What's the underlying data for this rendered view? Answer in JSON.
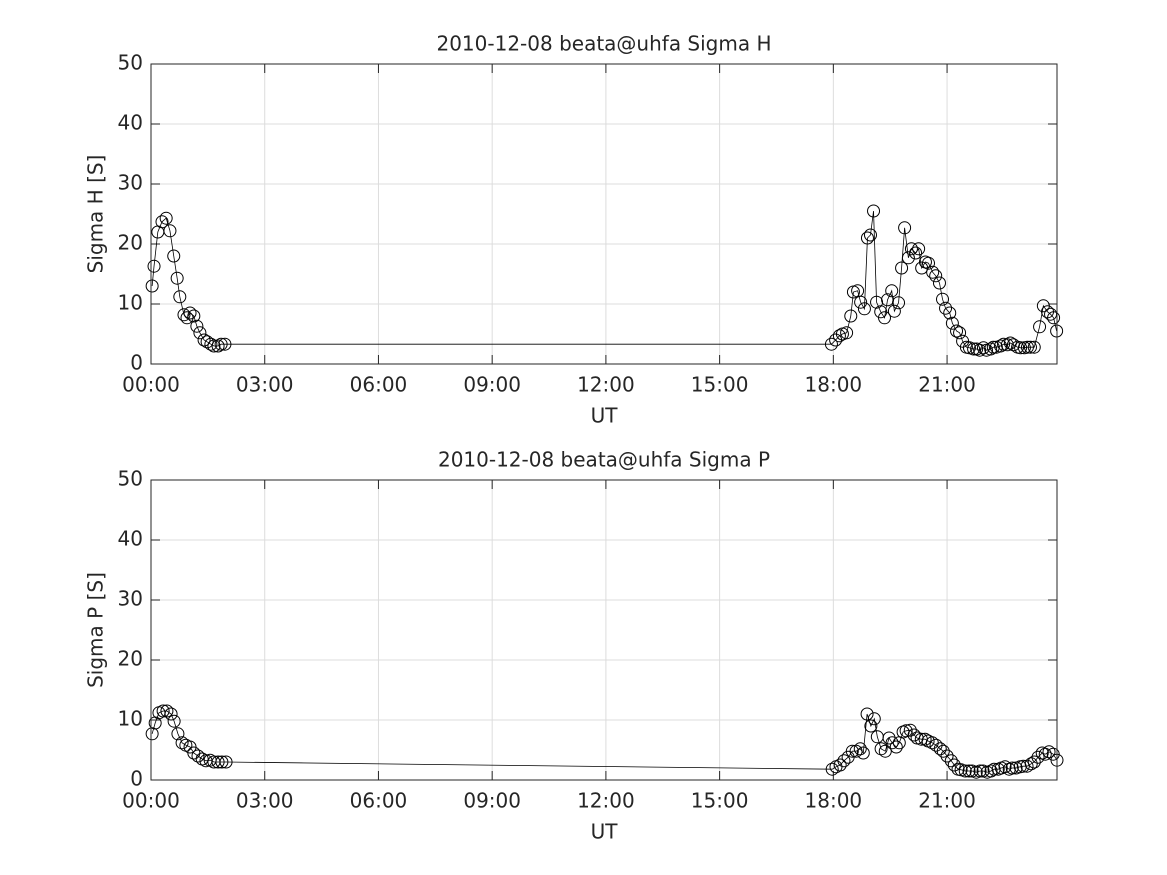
{
  "chart_data": [
    {
      "type": "line",
      "title": "2010-12-08  beata@uhfa Sigma H",
      "xlabel": "UT",
      "ylabel": "Sigma H [S]",
      "xlim": [
        0,
        23.9
      ],
      "ylim": [
        0,
        50
      ],
      "grid": true,
      "xticks": [
        {
          "value": 0,
          "label": "00:00"
        },
        {
          "value": 3,
          "label": "03:00"
        },
        {
          "value": 6,
          "label": "06:00"
        },
        {
          "value": 9,
          "label": "09:00"
        },
        {
          "value": 12,
          "label": "12:00"
        },
        {
          "value": 15,
          "label": "15:00"
        },
        {
          "value": 18,
          "label": "18:00"
        },
        {
          "value": 21,
          "label": "21:00"
        }
      ],
      "yticks": [
        0,
        10,
        20,
        30,
        40,
        50
      ],
      "series": [
        {
          "color": "#000000",
          "x": [
            0.03,
            0.08,
            0.18,
            0.29,
            0.4,
            0.5,
            0.6,
            0.69,
            0.76,
            0.87,
            0.95,
            1.03,
            1.13,
            1.21,
            1.29,
            1.4,
            1.48,
            1.58,
            1.66,
            1.77,
            1.85,
            1.95,
            17.95,
            18.06,
            18.16,
            18.24,
            18.35,
            18.46,
            18.53,
            18.64,
            18.72,
            18.82,
            18.9,
            18.98,
            19.06,
            19.14,
            19.25,
            19.35,
            19.43,
            19.54,
            19.61,
            19.72,
            19.8,
            19.88,
            19.98,
            20.06,
            20.17,
            20.25,
            20.33,
            20.43,
            20.51,
            20.62,
            20.7,
            20.8,
            20.88,
            20.96,
            21.07,
            21.14,
            21.25,
            21.33,
            21.41,
            21.51,
            21.59,
            21.7,
            21.78,
            21.86,
            21.96,
            22.04,
            22.15,
            22.22,
            22.3,
            22.41,
            22.49,
            22.59,
            22.67,
            22.75,
            22.86,
            22.94,
            23.04,
            23.12,
            23.2,
            23.3,
            23.44,
            23.54,
            23.65,
            23.73,
            23.81,
            23.89
          ],
          "values": [
            13,
            16.3,
            22,
            23.7,
            24.3,
            22.2,
            18,
            14.3,
            11.2,
            8.2,
            7.7,
            8.5,
            8,
            6.3,
            5.2,
            4,
            3.7,
            3.3,
            3,
            3,
            3.3,
            3.3,
            3.3,
            4,
            4.7,
            5,
            5.2,
            8,
            12,
            12.2,
            10.3,
            9.2,
            21,
            21.5,
            25.5,
            10.3,
            8.7,
            7.7,
            10.7,
            12.2,
            8.8,
            10.2,
            16,
            22.7,
            17.7,
            19.2,
            18.5,
            19.2,
            16,
            17,
            16.8,
            15.3,
            14.7,
            13.5,
            10.8,
            9.3,
            8.5,
            6.8,
            5.5,
            5.2,
            3.8,
            2.8,
            2.7,
            2.5,
            2.5,
            2.3,
            2.7,
            2.3,
            2.5,
            2.8,
            2.8,
            3,
            3.3,
            3.2,
            3.5,
            3.2,
            2.8,
            2.7,
            2.7,
            2.8,
            2.8,
            2.8,
            6.2,
            9.7,
            8.7,
            8.3,
            7.7,
            5.5
          ]
        }
      ]
    },
    {
      "type": "line",
      "title": "2010-12-08  beata@uhfa Sigma P",
      "xlabel": "UT",
      "ylabel": "Sigma P [S]",
      "xlim": [
        0,
        23.9
      ],
      "ylim": [
        0,
        50
      ],
      "grid": true,
      "xticks": [
        {
          "value": 0,
          "label": "00:00"
        },
        {
          "value": 3,
          "label": "03:00"
        },
        {
          "value": 6,
          "label": "06:00"
        },
        {
          "value": 9,
          "label": "09:00"
        },
        {
          "value": 12,
          "label": "12:00"
        },
        {
          "value": 15,
          "label": "15:00"
        },
        {
          "value": 18,
          "label": "18:00"
        },
        {
          "value": 21,
          "label": "21:00"
        }
      ],
      "yticks": [
        0,
        10,
        20,
        30,
        40,
        50
      ],
      "series": [
        {
          "color": "#000000",
          "x": [
            0.03,
            0.11,
            0.21,
            0.32,
            0.42,
            0.53,
            0.61,
            0.71,
            0.82,
            0.92,
            1.03,
            1.13,
            1.24,
            1.35,
            1.45,
            1.56,
            1.66,
            1.77,
            1.87,
            1.98,
            17.97,
            18.07,
            18.18,
            18.28,
            18.39,
            18.5,
            18.6,
            18.71,
            18.79,
            18.89,
            18.99,
            19.08,
            19.16,
            19.26,
            19.37,
            19.47,
            19.55,
            19.66,
            19.74,
            19.84,
            19.92,
            20.03,
            20.13,
            20.21,
            20.32,
            20.42,
            20.5,
            20.61,
            20.71,
            20.82,
            20.9,
            21,
            21.11,
            21.19,
            21.29,
            21.37,
            21.48,
            21.58,
            21.66,
            21.77,
            21.87,
            21.95,
            22.06,
            22.16,
            22.24,
            22.35,
            22.43,
            22.53,
            22.64,
            22.72,
            22.82,
            22.93,
            23.01,
            23.11,
            23.22,
            23.3,
            23.4,
            23.51,
            23.59,
            23.69,
            23.8,
            23.9
          ],
          "values": [
            7.7,
            9.5,
            11.2,
            11.5,
            11.5,
            11,
            9.8,
            7.7,
            6.2,
            5.8,
            5.5,
            4.5,
            4,
            3.5,
            3.2,
            3.3,
            3,
            3,
            3,
            3,
            1.8,
            2.2,
            2.5,
            3.2,
            3.8,
            4.8,
            4.8,
            5.2,
            4.5,
            11,
            9,
            10.2,
            7.2,
            5.2,
            4.8,
            7,
            6.2,
            5.5,
            6.2,
            8,
            8.2,
            8.3,
            7.5,
            7,
            6.8,
            6.8,
            6.5,
            6.2,
            5.8,
            5.2,
            4.8,
            4,
            3.2,
            2.5,
            1.8,
            1.7,
            1.5,
            1.5,
            1.5,
            1.3,
            1.5,
            1.5,
            1.3,
            1.5,
            1.8,
            1.8,
            2,
            2.2,
            1.8,
            2,
            2,
            2.2,
            2.3,
            2.3,
            2.7,
            3,
            3.8,
            4.5,
            4.3,
            4.7,
            4.3,
            3.3
          ]
        }
      ]
    }
  ]
}
